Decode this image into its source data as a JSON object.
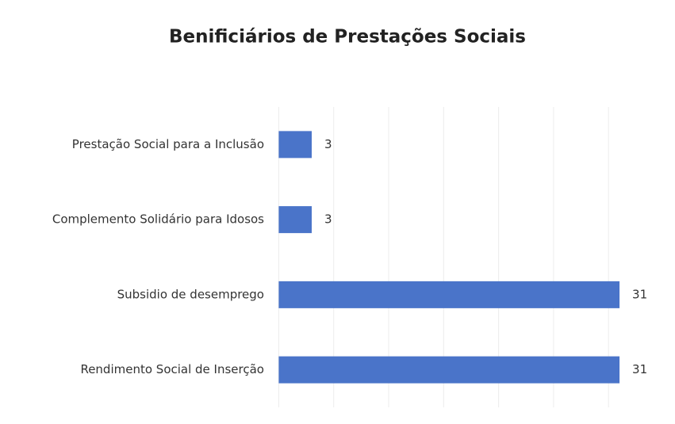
{
  "chart_data": {
    "type": "bar",
    "orientation": "horizontal",
    "title": "Benificiários de Prestações Sociais",
    "categories": [
      "Prestação Social para a Inclusão",
      "Complemento Solidário para Idosos",
      "Subsidio de desemprego",
      "Rendimento Social de Inserção"
    ],
    "values": [
      3,
      3,
      31,
      31
    ],
    "color": "#4a74c9",
    "xlim": [
      0,
      35
    ],
    "xticks": [
      0,
      5,
      10,
      15,
      20,
      25,
      30
    ],
    "grid": true
  }
}
